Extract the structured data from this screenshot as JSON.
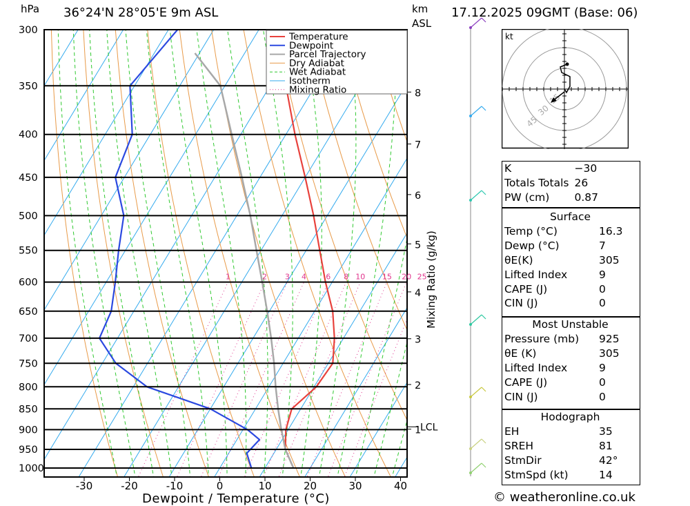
{
  "header": {
    "location": "36°24'N 28°05'E 9m ASL",
    "datetime": "17.12.2025 09GMT (Base: 06)",
    "pressure_unit": "hPa",
    "height_unit_line1": "km",
    "height_unit_line2": "ASL"
  },
  "footer": {
    "credit": "© weatheronline.co.uk"
  },
  "chart_data": [
    {
      "type": "line",
      "subtype": "skew-T log-P diagram",
      "xlabel": "Dewpoint / Temperature (°C)",
      "ylabel": "hPa",
      "secondary_ylabel": "km ASL",
      "mixing_ratio_label": "Mixing Ratio (g/kg)",
      "xlim": [
        -40,
        41
      ],
      "ylim": [
        1050,
        300
      ],
      "x_ticks": [
        -30,
        -20,
        -10,
        0,
        10,
        20,
        30,
        40
      ],
      "pressure_levels": [
        300,
        350,
        400,
        450,
        500,
        550,
        600,
        650,
        700,
        750,
        800,
        850,
        900,
        950,
        1000
      ],
      "height_ticks_km": [
        1,
        2,
        3,
        4,
        5,
        6,
        7,
        8
      ],
      "mixing_ratio_values": [
        "1",
        "2",
        "3",
        "4",
        "6",
        "8",
        "10",
        "15",
        "20",
        "25"
      ],
      "lcl_label": "LCL",
      "lcl_pressure": 893,
      "legend": [
        "Temperature",
        "Dewpoint",
        "Parcel Trajectory",
        "Dry Adiabat",
        "Wet Adiabat",
        "Isotherm",
        "Mixing Ratio"
      ],
      "legend_position": "top-right",
      "colors": {
        "temperature": "#e8413c",
        "dewpoint": "#2b49e0",
        "parcel": "#a8a8a8",
        "dry_adiabat": "#e89a48",
        "wet_adiabat": "#2ec82e",
        "isotherm": "#33aaee",
        "mixing_ratio": "#e0338c"
      },
      "series": [
        {
          "name": "Temperature",
          "points": [
            [
              16.3,
              1000
            ],
            [
              12,
              950
            ],
            [
              9.5,
              900
            ],
            [
              8,
              850
            ],
            [
              10.5,
              800
            ],
            [
              11,
              750
            ],
            [
              8,
              700
            ],
            [
              4,
              650
            ],
            [
              -1.5,
              600
            ],
            [
              -7,
              550
            ],
            [
              -13,
              500
            ],
            [
              -20,
              450
            ],
            [
              -28,
              400
            ],
            [
              -36.5,
              350
            ],
            [
              -44,
              300
            ]
          ]
        },
        {
          "name": "Dewpoint",
          "points": [
            [
              7,
              1000
            ],
            [
              5.5,
              980
            ],
            [
              4,
              960
            ],
            [
              5,
              925
            ],
            [
              1,
              900
            ],
            [
              -10,
              850
            ],
            [
              -27,
              800
            ],
            [
              -37,
              750
            ],
            [
              -44,
              700
            ],
            [
              -45,
              650
            ],
            [
              -48,
              600
            ],
            [
              -51.5,
              550
            ],
            [
              -55,
              500
            ],
            [
              -62,
              450
            ],
            [
              -64,
              400
            ],
            [
              -71,
              350
            ],
            [
              -68,
              300
            ]
          ]
        },
        {
          "name": "Parcel Trajectory",
          "points": [
            [
              16.3,
              1000
            ],
            [
              12,
              950
            ],
            [
              8,
              893
            ],
            [
              5,
              850
            ],
            [
              1.5,
              800
            ],
            [
              -2,
              750
            ],
            [
              -6,
              700
            ],
            [
              -10.5,
              650
            ],
            [
              -15.5,
              600
            ],
            [
              -21,
              550
            ],
            [
              -27,
              500
            ],
            [
              -34,
              450
            ],
            [
              -42,
              400
            ],
            [
              -51,
              350
            ],
            [
              -61,
              320
            ]
          ]
        }
      ]
    },
    {
      "type": "scatter",
      "subtype": "hodograph",
      "unit": "kt",
      "ring_labels": [
        "15",
        "30",
        "45"
      ],
      "points_kt": [
        [
          0,
          0
        ],
        [
          1.5,
          2.5
        ],
        [
          4,
          -2
        ],
        [
          4,
          -9
        ],
        [
          -2,
          -12
        ],
        [
          -3,
          -16
        ],
        [
          2,
          -18
        ]
      ]
    }
  ],
  "indices": {
    "k": {
      "label": "K",
      "value": "−30"
    },
    "tt": {
      "label": "Totals Totals",
      "value": "26"
    },
    "pw": {
      "label": "PW (cm)",
      "value": "0.87"
    },
    "surface": {
      "title": "Surface",
      "temp": {
        "label": "Temp (°C)",
        "value": "16.3"
      },
      "dewp": {
        "label": "Dewp (°C)",
        "value": "7"
      },
      "thetae": {
        "label": "θE(K)",
        "value": "305"
      },
      "li": {
        "label": "Lifted Index",
        "value": "9"
      },
      "cape": {
        "label": "CAPE (J)",
        "value": "0"
      },
      "cin": {
        "label": "CIN (J)",
        "value": "0"
      }
    },
    "mu": {
      "title": "Most Unstable",
      "pressure": {
        "label": "Pressure (mb)",
        "value": "925"
      },
      "thetae": {
        "label": "θE (K)",
        "value": "305"
      },
      "li": {
        "label": "Lifted Index",
        "value": "9"
      },
      "cape": {
        "label": "CAPE (J)",
        "value": "0"
      },
      "cin": {
        "label": "CIN (J)",
        "value": "0"
      }
    },
    "hodo": {
      "title": "Hodograph",
      "eh": {
        "label": "EH",
        "value": "35"
      },
      "sreh": {
        "label": "SREH",
        "value": "81"
      },
      "stmdir": {
        "label": "StmDir",
        "value": "42°"
      },
      "stmspd": {
        "label": "StmSpd (kt)",
        "value": "14"
      }
    }
  }
}
